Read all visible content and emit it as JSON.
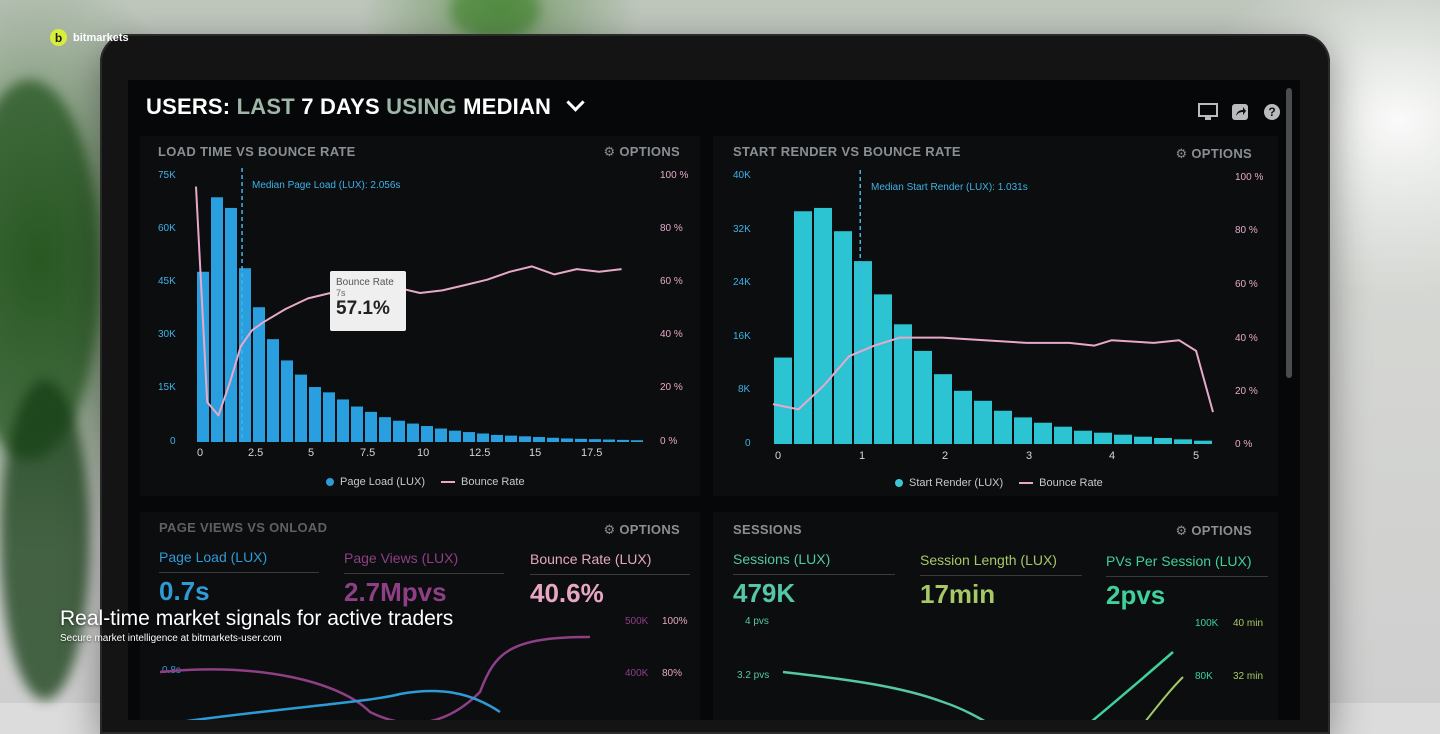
{
  "brand": {
    "logo_letter": "b",
    "name": "bitmarkets"
  },
  "overlay": {
    "title": "Real-time market signals for active traders",
    "subtitle": "Secure market intelligence at bitmarkets-user.com"
  },
  "dashboard": {
    "title_parts": [
      "USERS:",
      "LAST",
      "7 DAYS",
      "USING",
      "MEDIAN"
    ],
    "top_icons": [
      "monitor-icon",
      "share-icon",
      "help-icon"
    ],
    "options_label": "OPTIONS",
    "panels": {
      "load": {
        "title": "LOAD TIME VS BOUNCE RATE",
        "median_label": "Median Page Load (LUX): 2.056s",
        "y_left": [
          "75K",
          "60K",
          "45K",
          "30K",
          "15K",
          "0"
        ],
        "y_right": [
          "100 %",
          "80 %",
          "60 %",
          "40 %",
          "20 %",
          "0 %"
        ],
        "x": [
          "0",
          "2.5",
          "5",
          "7.5",
          "10",
          "12.5",
          "15",
          "17.5"
        ],
        "legend": [
          "Page Load (LUX)",
          "Bounce Rate"
        ],
        "tooltip": {
          "label": "Bounce Rate",
          "sub": "7s",
          "value": "57.1%"
        }
      },
      "render": {
        "title": "START RENDER VS BOUNCE RATE",
        "median_label": "Median Start Render (LUX): 1.031s",
        "y_left": [
          "40K",
          "32K",
          "24K",
          "16K",
          "8K",
          "0"
        ],
        "y_right": [
          "100 %",
          "80 %",
          "60 %",
          "40 %",
          "20 %",
          "0 %"
        ],
        "x": [
          "0",
          "1",
          "2",
          "3",
          "4",
          "5"
        ],
        "legend": [
          "Start Render (LUX)",
          "Bounce Rate"
        ]
      },
      "pageviews": {
        "title": "PAGE VIEWS VS ONLOAD",
        "kpis": [
          {
            "label": "Page Load (LUX)",
            "value": "0.7s",
            "color": "#2f9bd6"
          },
          {
            "label": "Page Views (LUX)",
            "value": "2.7Mpvs",
            "color": "#8e3f86"
          },
          {
            "label": "Bounce Rate (LUX)",
            "value": "40.6%",
            "color": "#e7a7c3"
          }
        ],
        "axis_left": "0.8s",
        "axis_right_1": [
          "500K",
          "100%"
        ],
        "axis_right_2": [
          "400K",
          "80%"
        ]
      },
      "sessions": {
        "title": "SESSIONS",
        "kpis": [
          {
            "label": "Sessions (LUX)",
            "value": "479K",
            "color": "#55c6a6"
          },
          {
            "label": "Session Length (LUX)",
            "value": "17min",
            "color": "#a6c966"
          },
          {
            "label": "PVs Per Session (LUX)",
            "value": "2pvs",
            "color": "#3fd19a"
          }
        ],
        "axis_left": [
          "4 pvs",
          "3.2 pvs"
        ],
        "axis_right_1": [
          "100K",
          "40 min"
        ],
        "axis_right_2": [
          "80K",
          "32 min"
        ]
      }
    }
  },
  "chart_data": [
    {
      "type": "bar",
      "title": "LOAD TIME VS BOUNCE RATE",
      "xlabel": "",
      "ylabel": "",
      "ylim": [
        0,
        75000
      ],
      "x_range": [
        0,
        20
      ],
      "series": [
        {
          "name": "Page Load (LUX)",
          "type": "bar",
          "values": [
            48000,
            69000,
            66000,
            49000,
            38000,
            29000,
            23000,
            19000,
            15500,
            14000,
            12000,
            10000,
            8500,
            7000,
            6000,
            5200,
            4500,
            3800,
            3200,
            2800,
            2400,
            2000,
            1800,
            1600,
            1400,
            1200,
            1000,
            900,
            800,
            700,
            600,
            500
          ]
        },
        {
          "name": "Bounce Rate",
          "type": "line",
          "unit": "%",
          "x": [
            0,
            0.5,
            1,
            1.5,
            2,
            2.5,
            3,
            4,
            5,
            6,
            7,
            8,
            9,
            10,
            11,
            12,
            13,
            14,
            15,
            16,
            17,
            18,
            19
          ],
          "values": [
            96,
            15,
            10,
            22,
            36,
            42,
            45,
            50,
            54,
            56,
            57.1,
            57,
            58,
            56,
            57,
            59,
            61,
            64,
            66,
            63,
            65,
            64,
            65
          ]
        }
      ]
    },
    {
      "type": "bar",
      "title": "START RENDER VS BOUNCE RATE",
      "xlabel": "",
      "ylabel": "",
      "ylim": [
        0,
        40000
      ],
      "x_range": [
        0,
        5.2
      ],
      "series": [
        {
          "name": "Start Render (LUX)",
          "type": "bar",
          "values": [
            13000,
            35000,
            35500,
            32000,
            27500,
            22500,
            18000,
            14000,
            10500,
            8000,
            6500,
            5000,
            4000,
            3200,
            2600,
            2000,
            1700,
            1400,
            1100,
            900,
            700,
            500
          ]
        },
        {
          "name": "Bounce Rate",
          "type": "line",
          "unit": "%",
          "x": [
            0,
            0.3,
            0.6,
            0.9,
            1.2,
            1.5,
            2,
            2.5,
            3,
            3.5,
            3.8,
            4,
            4.5,
            4.8,
            5,
            5.2
          ],
          "values": [
            15,
            13,
            22,
            33,
            37,
            40,
            40,
            39,
            38,
            38,
            37,
            39,
            38,
            39,
            35,
            12
          ]
        }
      ]
    }
  ]
}
